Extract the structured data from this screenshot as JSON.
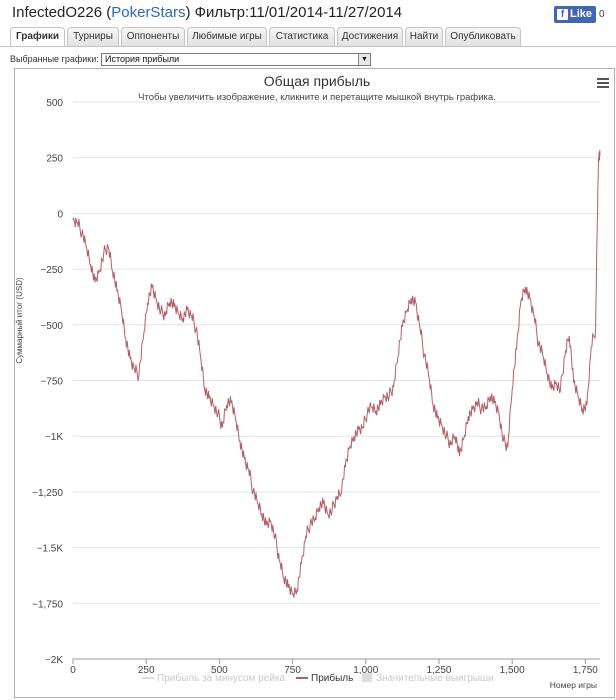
{
  "header": {
    "player": "InfectedO226",
    "site": "PokerStars",
    "filter": "Фильтр:11/01/2014-11/27/2014",
    "fb_like": "Like",
    "fb_count": "0"
  },
  "tabs": [
    {
      "label": "Графики",
      "active": true
    },
    {
      "label": "Турниры",
      "active": false
    },
    {
      "label": "Оппоненты",
      "active": false
    },
    {
      "label": "Любимые игры",
      "active": false
    },
    {
      "label": "Статистика",
      "active": false
    },
    {
      "label": "Достижения",
      "active": false
    },
    {
      "label": "Найти",
      "active": false
    },
    {
      "label": "Опубликовать",
      "active": false
    }
  ],
  "selector": {
    "label": "Выбранные графики:",
    "value": "История прибыли"
  },
  "chart_data": {
    "type": "line",
    "title": "Общая прибыль",
    "subtitle": "Чтобы увеличить изображение, кликните и перетащите мышкой внутрь графика.",
    "ylabel": "Суммарный итог (USD)",
    "xlabel": "Номер игры",
    "xlim": [
      0,
      1800
    ],
    "ylim": [
      -2000,
      500
    ],
    "x_ticks": [
      0,
      250,
      500,
      750,
      1000,
      1250,
      1500,
      1750
    ],
    "x_tick_labels": [
      "0",
      "250",
      "500",
      "750",
      "1,000",
      "1,250",
      "1,500",
      "1,750"
    ],
    "y_ticks": [
      500,
      250,
      0,
      -250,
      -500,
      -750,
      -1000,
      -1250,
      -1500,
      -1750,
      -2000
    ],
    "y_tick_labels": [
      "500",
      "250",
      "0",
      "−250",
      "−500",
      "−750",
      "−1K",
      "−1,250",
      "−1.5K",
      "−1,750",
      "−2K"
    ],
    "grid": "horizontal",
    "legend_position": "bottom",
    "legend": [
      {
        "name": "Прибыль за минусом рейка",
        "color": "#dcdcdc",
        "symbol": "line"
      },
      {
        "name": "Прибыль",
        "color": "#b06068",
        "symbol": "line"
      },
      {
        "name": "Значительные выигрыши",
        "color": "#dcdcdc",
        "symbol": "box"
      }
    ],
    "series": [
      {
        "name": "Прибыль",
        "color": "#b06068",
        "x": [
          0,
          15,
          30,
          45,
          60,
          75,
          90,
          105,
          120,
          135,
          150,
          165,
          180,
          195,
          210,
          225,
          240,
          255,
          270,
          285,
          300,
          315,
          330,
          345,
          360,
          375,
          390,
          405,
          420,
          435,
          450,
          465,
          480,
          495,
          510,
          525,
          540,
          555,
          570,
          585,
          600,
          615,
          630,
          645,
          660,
          675,
          690,
          705,
          720,
          735,
          750,
          765,
          780,
          795,
          810,
          825,
          840,
          855,
          870,
          885,
          900,
          915,
          930,
          945,
          960,
          975,
          990,
          1005,
          1020,
          1035,
          1050,
          1065,
          1080,
          1095,
          1110,
          1125,
          1140,
          1155,
          1170,
          1185,
          1200,
          1215,
          1230,
          1245,
          1260,
          1275,
          1290,
          1305,
          1320,
          1335,
          1350,
          1365,
          1380,
          1395,
          1410,
          1425,
          1440,
          1455,
          1470,
          1485,
          1500,
          1515,
          1530,
          1545,
          1560,
          1575,
          1590,
          1605,
          1620,
          1635,
          1650,
          1665,
          1680,
          1695,
          1710,
          1725,
          1740,
          1755,
          1770,
          1785,
          1790,
          1795,
          1800
        ],
        "y": [
          -30,
          -40,
          -90,
          -150,
          -230,
          -310,
          -260,
          -180,
          -150,
          -260,
          -350,
          -430,
          -560,
          -650,
          -700,
          -730,
          -560,
          -400,
          -330,
          -390,
          -440,
          -460,
          -400,
          -420,
          -450,
          -470,
          -430,
          -460,
          -520,
          -640,
          -790,
          -830,
          -860,
          -900,
          -960,
          -860,
          -850,
          -920,
          -1020,
          -1100,
          -1150,
          -1250,
          -1300,
          -1350,
          -1400,
          -1380,
          -1450,
          -1560,
          -1640,
          -1680,
          -1710,
          -1690,
          -1570,
          -1450,
          -1400,
          -1380,
          -1320,
          -1300,
          -1350,
          -1330,
          -1280,
          -1260,
          -1140,
          -1050,
          -1000,
          -970,
          -960,
          -900,
          -870,
          -890,
          -860,
          -820,
          -820,
          -780,
          -640,
          -510,
          -440,
          -380,
          -400,
          -510,
          -640,
          -730,
          -860,
          -920,
          -950,
          -1000,
          -1040,
          -1000,
          -1090,
          -1010,
          -910,
          -880,
          -850,
          -880,
          -880,
          -820,
          -850,
          -900,
          -1020,
          -1050,
          -790,
          -610,
          -390,
          -330,
          -380,
          -460,
          -590,
          -640,
          -720,
          -790,
          -760,
          -790,
          -640,
          -550,
          -760,
          -820,
          -880,
          -860,
          -600,
          -520,
          -100,
          250,
          260
        ]
      }
    ]
  }
}
